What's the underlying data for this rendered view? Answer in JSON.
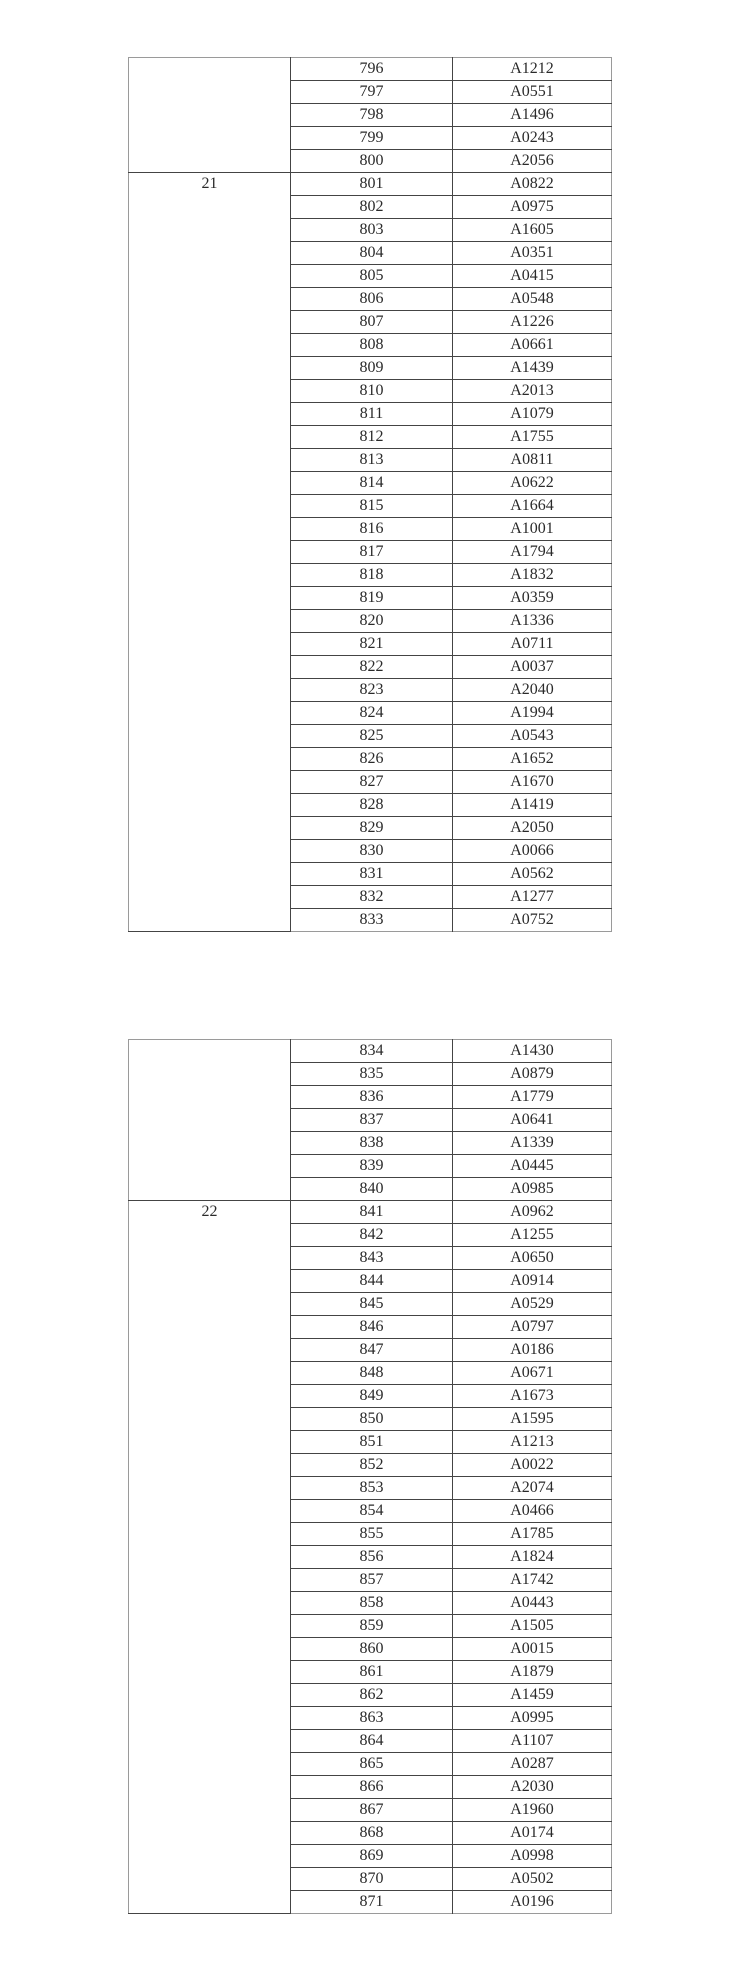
{
  "tables": [
    {
      "groups": [
        {
          "label": "",
          "rows": [
            [
              "796",
              "A1212"
            ],
            [
              "797",
              "A0551"
            ],
            [
              "798",
              "A1496"
            ],
            [
              "799",
              "A0243"
            ],
            [
              "800",
              "A2056"
            ]
          ]
        },
        {
          "label": "21",
          "rows": [
            [
              "801",
              "A0822"
            ],
            [
              "802",
              "A0975"
            ],
            [
              "803",
              "A1605"
            ],
            [
              "804",
              "A0351"
            ],
            [
              "805",
              "A0415"
            ],
            [
              "806",
              "A0548"
            ],
            [
              "807",
              "A1226"
            ],
            [
              "808",
              "A0661"
            ],
            [
              "809",
              "A1439"
            ],
            [
              "810",
              "A2013"
            ],
            [
              "811",
              "A1079"
            ],
            [
              "812",
              "A1755"
            ],
            [
              "813",
              "A0811"
            ],
            [
              "814",
              "A0622"
            ],
            [
              "815",
              "A1664"
            ],
            [
              "816",
              "A1001"
            ],
            [
              "817",
              "A1794"
            ],
            [
              "818",
              "A1832"
            ],
            [
              "819",
              "A0359"
            ],
            [
              "820",
              "A1336"
            ],
            [
              "821",
              "A0711"
            ],
            [
              "822",
              "A0037"
            ],
            [
              "823",
              "A2040"
            ],
            [
              "824",
              "A1994"
            ],
            [
              "825",
              "A0543"
            ],
            [
              "826",
              "A1652"
            ],
            [
              "827",
              "A1670"
            ],
            [
              "828",
              "A1419"
            ],
            [
              "829",
              "A2050"
            ],
            [
              "830",
              "A0066"
            ],
            [
              "831",
              "A0562"
            ],
            [
              "832",
              "A1277"
            ],
            [
              "833",
              "A0752"
            ]
          ]
        }
      ]
    },
    {
      "groups": [
        {
          "label": "",
          "rows": [
            [
              "834",
              "A1430"
            ],
            [
              "835",
              "A0879"
            ],
            [
              "836",
              "A1779"
            ],
            [
              "837",
              "A0641"
            ],
            [
              "838",
              "A1339"
            ],
            [
              "839",
              "A0445"
            ],
            [
              "840",
              "A0985"
            ]
          ]
        },
        {
          "label": "22",
          "rows": [
            [
              "841",
              "A0962"
            ],
            [
              "842",
              "A1255"
            ],
            [
              "843",
              "A0650"
            ],
            [
              "844",
              "A0914"
            ],
            [
              "845",
              "A0529"
            ],
            [
              "846",
              "A0797"
            ],
            [
              "847",
              "A0186"
            ],
            [
              "848",
              "A0671"
            ],
            [
              "849",
              "A1673"
            ],
            [
              "850",
              "A1595"
            ],
            [
              "851",
              "A1213"
            ],
            [
              "852",
              "A0022"
            ],
            [
              "853",
              "A2074"
            ],
            [
              "854",
              "A0466"
            ],
            [
              "855",
              "A1785"
            ],
            [
              "856",
              "A1824"
            ],
            [
              "857",
              "A1742"
            ],
            [
              "858",
              "A0443"
            ],
            [
              "859",
              "A1505"
            ],
            [
              "860",
              "A0015"
            ],
            [
              "861",
              "A1879"
            ],
            [
              "862",
              "A1459"
            ],
            [
              "863",
              "A0995"
            ],
            [
              "864",
              "A1107"
            ],
            [
              "865",
              "A0287"
            ],
            [
              "866",
              "A2030"
            ],
            [
              "867",
              "A1960"
            ],
            [
              "868",
              "A0174"
            ],
            [
              "869",
              "A0998"
            ],
            [
              "870",
              "A0502"
            ],
            [
              "871",
              "A0196"
            ]
          ]
        }
      ]
    }
  ]
}
